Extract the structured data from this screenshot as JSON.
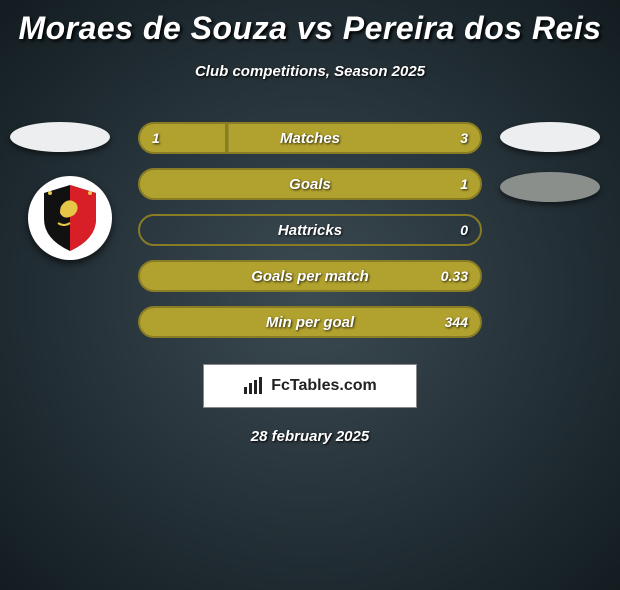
{
  "title": "Moraes de Souza vs Pereira dos Reis",
  "subtitle": "Club competitions, Season 2025",
  "date": "28 february 2025",
  "logo_text": "FcTables.com",
  "colors": {
    "bar_fill": "#b1a12e",
    "bar_border": "#887c24",
    "badge_light": "#eceef0",
    "badge_grey": "#8b8f8c"
  },
  "bars": [
    {
      "label": "Matches",
      "left": "1",
      "right": "3",
      "left_pct": 25,
      "right_pct": 75
    },
    {
      "label": "Goals",
      "left": "",
      "right": "1",
      "left_pct": 0,
      "right_pct": 100
    },
    {
      "label": "Hattricks",
      "left": "",
      "right": "0",
      "left_pct": 0,
      "right_pct": 0
    },
    {
      "label": "Goals per match",
      "left": "",
      "right": "0.33",
      "left_pct": 0,
      "right_pct": 100
    },
    {
      "label": "Min per goal",
      "left": "",
      "right": "344",
      "left_pct": 0,
      "right_pct": 100
    }
  ]
}
